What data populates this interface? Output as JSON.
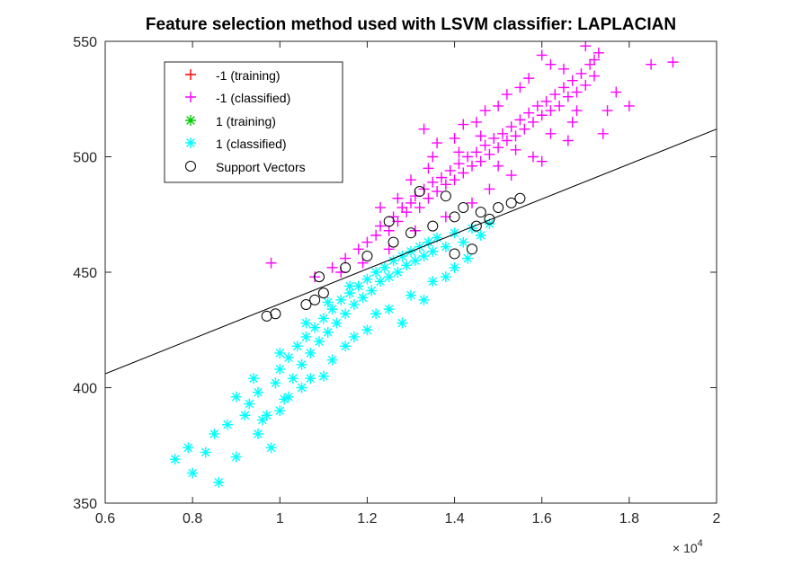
{
  "chart_data": {
    "type": "scatter",
    "title": "Feature selection method used with LSVM classifier: LAPLACIAN",
    "xlabel": "",
    "ylabel": "",
    "xlim": [
      0.6,
      2.0
    ],
    "ylim": [
      350,
      550
    ],
    "x_scale_factor": "10",
    "x_scale_exponent": "4",
    "x_ticks": [
      "0.6",
      "0.8",
      "1",
      "1.2",
      "1.4",
      "1.6",
      "1.8",
      "2"
    ],
    "y_ticks": [
      "350",
      "400",
      "450",
      "500",
      "550"
    ],
    "x_tick_values": [
      0.6,
      0.8,
      1.0,
      1.2,
      1.4,
      1.6,
      1.8,
      2.0
    ],
    "y_tick_values": [
      350,
      400,
      450,
      500,
      550
    ],
    "grid": false,
    "legend_position": "top-left",
    "legend": [
      {
        "label": "-1 (training)",
        "marker": "plus",
        "color": "#ff0000"
      },
      {
        "label": "-1 (classified)",
        "marker": "plus",
        "color": "#ff00ff"
      },
      {
        "label": "1 (training)",
        "marker": "asterisk",
        "color": "#00cc00"
      },
      {
        "label": "1 (classified)",
        "marker": "asterisk",
        "color": "#00ffff"
      },
      {
        "label": "Support Vectors",
        "marker": "circle",
        "color": "#000000"
      }
    ],
    "decision_boundary": {
      "x": [
        0.6,
        2.0
      ],
      "y": [
        406,
        512
      ]
    },
    "series": [
      {
        "name": "-1 (classified)",
        "marker": "plus",
        "color": "#ff00ff",
        "points": [
          [
            0.98,
            454
          ],
          [
            1.08,
            448
          ],
          [
            1.12,
            452
          ],
          [
            1.15,
            456
          ],
          [
            1.18,
            460
          ],
          [
            1.2,
            463
          ],
          [
            1.22,
            466
          ],
          [
            1.23,
            470
          ],
          [
            1.25,
            468
          ],
          [
            1.26,
            474
          ],
          [
            1.27,
            472
          ],
          [
            1.28,
            478
          ],
          [
            1.29,
            476
          ],
          [
            1.3,
            480
          ],
          [
            1.31,
            483
          ],
          [
            1.32,
            478
          ],
          [
            1.33,
            486
          ],
          [
            1.34,
            482
          ],
          [
            1.35,
            489
          ],
          [
            1.36,
            485
          ],
          [
            1.37,
            491
          ],
          [
            1.38,
            488
          ],
          [
            1.39,
            494
          ],
          [
            1.4,
            490
          ],
          [
            1.41,
            497
          ],
          [
            1.42,
            493
          ],
          [
            1.43,
            500
          ],
          [
            1.44,
            496
          ],
          [
            1.45,
            502
          ],
          [
            1.46,
            498
          ],
          [
            1.47,
            505
          ],
          [
            1.48,
            501
          ],
          [
            1.49,
            508
          ],
          [
            1.5,
            504
          ],
          [
            1.51,
            510
          ],
          [
            1.52,
            507
          ],
          [
            1.53,
            513
          ],
          [
            1.54,
            509
          ],
          [
            1.55,
            516
          ],
          [
            1.56,
            512
          ],
          [
            1.57,
            519
          ],
          [
            1.58,
            515
          ],
          [
            1.59,
            522
          ],
          [
            1.6,
            518
          ],
          [
            1.61,
            524
          ],
          [
            1.62,
            520
          ],
          [
            1.63,
            527
          ],
          [
            1.64,
            522
          ],
          [
            1.65,
            530
          ],
          [
            1.66,
            526
          ],
          [
            1.67,
            533
          ],
          [
            1.68,
            528
          ],
          [
            1.69,
            536
          ],
          [
            1.7,
            531
          ],
          [
            1.71,
            540
          ],
          [
            1.72,
            535
          ],
          [
            1.73,
            545
          ],
          [
            1.6,
            544
          ],
          [
            1.62,
            540
          ],
          [
            1.55,
            530
          ],
          [
            1.5,
            522
          ],
          [
            1.45,
            515
          ],
          [
            1.4,
            508
          ],
          [
            1.35,
            500
          ],
          [
            1.33,
            512
          ],
          [
            1.36,
            506
          ],
          [
            1.42,
            514
          ],
          [
            1.47,
            520
          ],
          [
            1.52,
            527
          ],
          [
            1.57,
            534
          ],
          [
            1.65,
            538
          ],
          [
            1.7,
            548
          ],
          [
            1.72,
            542
          ],
          [
            1.77,
            528
          ],
          [
            1.8,
            522
          ],
          [
            1.85,
            540
          ],
          [
            1.9,
            541
          ],
          [
            1.74,
            510
          ],
          [
            1.66,
            507
          ],
          [
            1.58,
            500
          ],
          [
            1.53,
            492
          ],
          [
            1.48,
            486
          ],
          [
            1.44,
            480
          ],
          [
            1.38,
            474
          ],
          [
            1.31,
            468
          ],
          [
            1.25,
            460
          ],
          [
            1.19,
            454
          ],
          [
            1.14,
            450
          ],
          [
            1.6,
            498
          ],
          [
            1.67,
            515
          ],
          [
            1.75,
            520
          ],
          [
            1.46,
            509
          ],
          [
            1.41,
            502
          ],
          [
            1.5,
            496
          ],
          [
            1.54,
            503
          ],
          [
            1.62,
            510
          ],
          [
            1.68,
            520
          ],
          [
            1.23,
            478
          ],
          [
            1.27,
            482
          ],
          [
            1.3,
            490
          ],
          [
            1.34,
            495
          ]
        ]
      },
      {
        "name": "1 (classified)",
        "marker": "asterisk",
        "color": "#00ffff",
        "points": [
          [
            0.76,
            369
          ],
          [
            0.8,
            363
          ],
          [
            0.79,
            374
          ],
          [
            0.83,
            372
          ],
          [
            0.86,
            359
          ],
          [
            0.85,
            380
          ],
          [
            0.88,
            384
          ],
          [
            0.9,
            370
          ],
          [
            0.92,
            388
          ],
          [
            0.93,
            393
          ],
          [
            0.95,
            398
          ],
          [
            0.96,
            386
          ],
          [
            0.98,
            374
          ],
          [
            0.99,
            402
          ],
          [
            1.0,
            408
          ],
          [
            1.01,
            395
          ],
          [
            1.02,
            413
          ],
          [
            1.03,
            404
          ],
          [
            1.04,
            418
          ],
          [
            1.05,
            410
          ],
          [
            1.06,
            422
          ],
          [
            1.07,
            415
          ],
          [
            1.08,
            426
          ],
          [
            1.09,
            420
          ],
          [
            1.1,
            430
          ],
          [
            1.11,
            424
          ],
          [
            1.12,
            434
          ],
          [
            1.13,
            428
          ],
          [
            1.14,
            438
          ],
          [
            1.15,
            432
          ],
          [
            1.16,
            441
          ],
          [
            1.17,
            436
          ],
          [
            1.18,
            444
          ],
          [
            1.19,
            439
          ],
          [
            1.2,
            447
          ],
          [
            1.21,
            442
          ],
          [
            1.22,
            450
          ],
          [
            1.23,
            446
          ],
          [
            1.24,
            452
          ],
          [
            1.25,
            448
          ],
          [
            1.26,
            455
          ],
          [
            1.27,
            450
          ],
          [
            1.28,
            457
          ],
          [
            1.29,
            453
          ],
          [
            1.3,
            459
          ],
          [
            1.31,
            455
          ],
          [
            1.32,
            461
          ],
          [
            1.33,
            457
          ],
          [
            1.34,
            463
          ],
          [
            1.35,
            459
          ],
          [
            1.36,
            465
          ],
          [
            1.38,
            461
          ],
          [
            1.4,
            467
          ],
          [
            1.42,
            463
          ],
          [
            1.44,
            469
          ],
          [
            1.46,
            466
          ],
          [
            1.48,
            471
          ],
          [
            1.05,
            400
          ],
          [
            1.0,
            390
          ],
          [
            0.95,
            380
          ],
          [
            1.1,
            405
          ],
          [
            1.15,
            418
          ],
          [
            1.2,
            425
          ],
          [
            1.25,
            434
          ],
          [
            1.3,
            440
          ],
          [
            1.35,
            446
          ],
          [
            1.4,
            452
          ],
          [
            1.22,
            432
          ],
          [
            1.17,
            422
          ],
          [
            1.12,
            412
          ],
          [
            1.07,
            404
          ],
          [
            1.02,
            396
          ],
          [
            0.97,
            388
          ],
          [
            1.28,
            428
          ],
          [
            1.33,
            438
          ],
          [
            1.38,
            448
          ],
          [
            1.43,
            456
          ],
          [
            0.9,
            396
          ],
          [
            0.94,
            404
          ],
          [
            1.0,
            415
          ],
          [
            1.06,
            428
          ],
          [
            1.11,
            437
          ],
          [
            1.16,
            444
          ]
        ]
      }
    ],
    "support_vectors": [
      [
        0.97,
        431
      ],
      [
        0.99,
        432
      ],
      [
        1.06,
        436
      ],
      [
        1.08,
        438
      ],
      [
        1.09,
        448
      ],
      [
        1.15,
        452
      ],
      [
        1.2,
        457
      ],
      [
        1.26,
        463
      ],
      [
        1.3,
        467
      ],
      [
        1.35,
        470
      ],
      [
        1.4,
        474
      ],
      [
        1.45,
        470
      ],
      [
        1.48,
        473
      ],
      [
        1.53,
        480
      ],
      [
        1.55,
        482
      ],
      [
        1.32,
        485
      ],
      [
        1.38,
        483
      ],
      [
        1.42,
        478
      ],
      [
        1.46,
        476
      ],
      [
        1.5,
        478
      ],
      [
        1.4,
        458
      ],
      [
        1.44,
        460
      ],
      [
        1.1,
        441
      ],
      [
        1.25,
        472
      ]
    ]
  }
}
